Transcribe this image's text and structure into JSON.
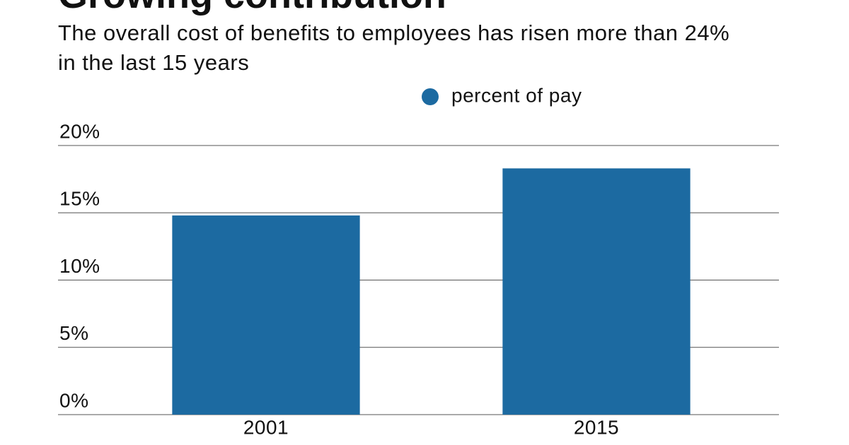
{
  "chart_data": {
    "type": "bar",
    "title": "Growing contribution",
    "subtitle": "The overall cost of benefits to employees has risen more than 24% in the last 15 years",
    "legend": "percent of pay",
    "categories": [
      "2001",
      "2015"
    ],
    "values": [
      14.8,
      18.3
    ],
    "color": "#1c6aa1",
    "ylim": [
      0,
      20
    ],
    "yticks": [
      {
        "value": 0,
        "label": "0%"
      },
      {
        "value": 5,
        "label": "5%"
      },
      {
        "value": 10,
        "label": "10%"
      },
      {
        "value": 15,
        "label": "15%"
      },
      {
        "value": 20,
        "label": "20%"
      }
    ],
    "grid": true
  }
}
